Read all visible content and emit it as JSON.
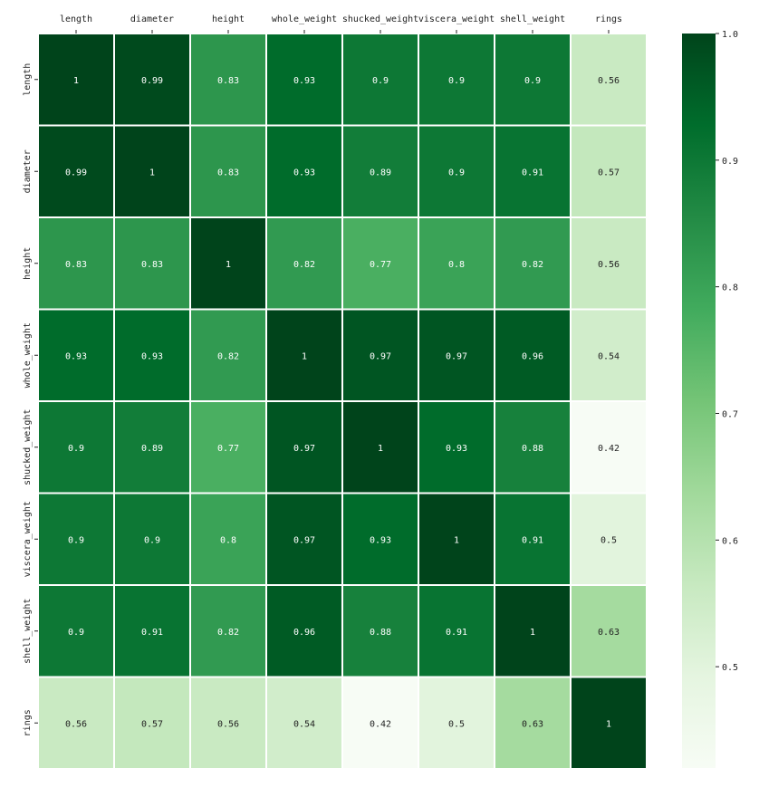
{
  "chart_data": {
    "type": "heatmap",
    "colormap": "Greens",
    "x_labels_position": "top",
    "x_labels": [
      "length",
      "diameter",
      "height",
      "whole_weight",
      "shucked_weight",
      "viscera_weight",
      "shell_weight",
      "rings"
    ],
    "y_labels": [
      "length",
      "diameter",
      "height",
      "whole_weight",
      "shucked_weight",
      "viscera_weight",
      "shell_weight",
      "rings"
    ],
    "values": [
      [
        1,
        0.99,
        0.83,
        0.93,
        0.9,
        0.9,
        0.9,
        0.56
      ],
      [
        0.99,
        1,
        0.83,
        0.93,
        0.89,
        0.9,
        0.91,
        0.57
      ],
      [
        0.83,
        0.83,
        1,
        0.82,
        0.77,
        0.8,
        0.82,
        0.56
      ],
      [
        0.93,
        0.93,
        0.82,
        1,
        0.97,
        0.97,
        0.96,
        0.54
      ],
      [
        0.9,
        0.89,
        0.77,
        0.97,
        1,
        0.93,
        0.88,
        0.42
      ],
      [
        0.9,
        0.9,
        0.8,
        0.97,
        0.93,
        1,
        0.91,
        0.5
      ],
      [
        0.9,
        0.91,
        0.82,
        0.96,
        0.88,
        0.91,
        1,
        0.63
      ],
      [
        0.56,
        0.57,
        0.56,
        0.54,
        0.42,
        0.5,
        0.63,
        1
      ]
    ],
    "cell_labels": [
      [
        "1",
        "0.99",
        "0.83",
        "0.93",
        "0.9",
        "0.9",
        "0.9",
        "0.56"
      ],
      [
        "0.99",
        "1",
        "0.83",
        "0.93",
        "0.89",
        "0.9",
        "0.91",
        "0.57"
      ],
      [
        "0.83",
        "0.83",
        "1",
        "0.82",
        "0.77",
        "0.8",
        "0.82",
        "0.56"
      ],
      [
        "0.93",
        "0.93",
        "0.82",
        "1",
        "0.97",
        "0.97",
        "0.96",
        "0.54"
      ],
      [
        "0.9",
        "0.89",
        "0.77",
        "0.97",
        "1",
        "0.93",
        "0.88",
        "0.42"
      ],
      [
        "0.9",
        "0.9",
        "0.8",
        "0.97",
        "0.93",
        "1",
        "0.91",
        "0.5"
      ],
      [
        "0.9",
        "0.91",
        "0.82",
        "0.96",
        "0.88",
        "0.91",
        "1",
        "0.63"
      ],
      [
        "0.56",
        "0.57",
        "0.56",
        "0.54",
        "0.42",
        "0.5",
        "0.63",
        "1"
      ]
    ],
    "colorbar": {
      "range": [
        0.42,
        1.0
      ],
      "ticks": [
        0.5,
        0.6,
        0.7,
        0.8,
        0.9,
        1.0
      ],
      "tick_labels": [
        "0.5",
        "0.6",
        "0.7",
        "0.8",
        "0.9",
        "1.0"
      ]
    },
    "legend_position": "right",
    "grid": false
  },
  "colors": {
    "greens_scale": [
      "#f7fcf5",
      "#e5f5e0",
      "#c7e9c0",
      "#a1d99b",
      "#74c476",
      "#41ab5d",
      "#238b45",
      "#006d2c",
      "#00441b"
    ],
    "cell_border": "#ffffff",
    "text_dark": "#222222",
    "text_light": "#ffffff"
  }
}
